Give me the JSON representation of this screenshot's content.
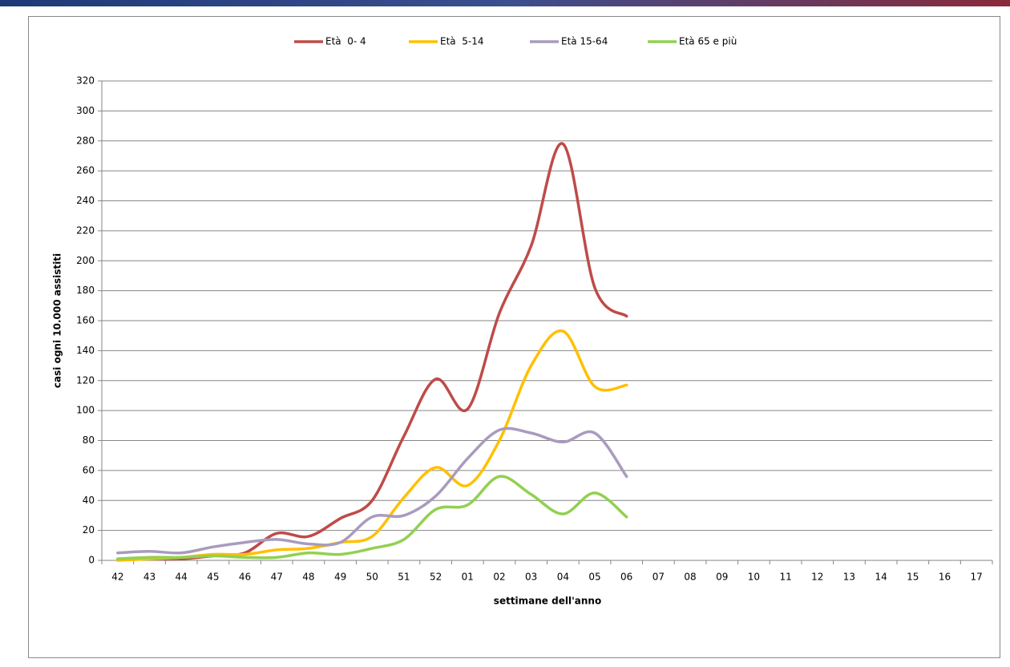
{
  "chart_data": {
    "type": "line",
    "y_label": "casi ogni 10.000 assistiti",
    "x_label": "settimane dell'anno",
    "categories": [
      "42",
      "43",
      "44",
      "45",
      "46",
      "47",
      "48",
      "49",
      "50",
      "51",
      "52",
      "01",
      "02",
      "03",
      "04",
      "05",
      "06",
      "07",
      "08",
      "09",
      "10",
      "11",
      "12",
      "13",
      "14",
      "15",
      "16",
      "17"
    ],
    "series": [
      {
        "name": "Età  0- 4",
        "color": "#be4b48",
        "values": [
          1,
          1,
          1,
          3,
          5,
          18,
          16,
          28,
          40,
          83,
          121,
          101,
          165,
          210,
          278,
          182,
          163,
          null,
          null,
          null,
          null,
          null,
          null,
          null,
          null,
          null,
          null,
          null
        ]
      },
      {
        "name": "Età  5-14",
        "color": "#ffc000",
        "values": [
          0,
          1,
          2,
          4,
          4,
          7,
          8,
          12,
          16,
          42,
          62,
          50,
          80,
          130,
          153,
          116,
          117,
          null,
          null,
          null,
          null,
          null,
          null,
          null,
          null,
          null,
          null,
          null
        ]
      },
      {
        "name": "Età 15-64",
        "color": "#a99bbd",
        "values": [
          5,
          6,
          5,
          9,
          12,
          14,
          11,
          12,
          29,
          30,
          43,
          68,
          87,
          85,
          79,
          85,
          56,
          null,
          null,
          null,
          null,
          null,
          null,
          null,
          null,
          null,
          null,
          null
        ]
      },
      {
        "name": "Età 65 e più",
        "color": "#92d050",
        "values": [
          1,
          2,
          2,
          3,
          2,
          2,
          5,
          4,
          8,
          14,
          34,
          37,
          56,
          44,
          31,
          45,
          29,
          null,
          null,
          null,
          null,
          null,
          null,
          null,
          null,
          null,
          null,
          null
        ]
      }
    ],
    "ylim": [
      0,
      320
    ],
    "yticks": [
      0,
      20,
      40,
      60,
      80,
      100,
      120,
      140,
      160,
      180,
      200,
      220,
      240,
      260,
      280,
      300,
      320
    ],
    "grid": true,
    "legend": "top",
    "smooth": true
  }
}
